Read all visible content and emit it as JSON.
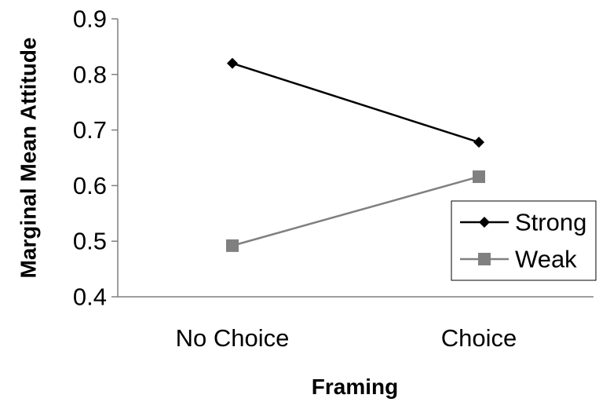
{
  "chart_data": {
    "type": "line",
    "xlabel": "Framing",
    "ylabel": "Marginal Mean Attitude",
    "categories": [
      "No Choice",
      "Choice"
    ],
    "ylim": [
      0.4,
      0.9
    ],
    "yticks": [
      "0.4",
      "0.5",
      "0.6",
      "0.7",
      "0.8",
      "0.9"
    ],
    "grid": false,
    "legend_position": "right",
    "series": [
      {
        "name": "Strong",
        "values": [
          0.82,
          0.678
        ],
        "color": "#000000",
        "marker": "diamond"
      },
      {
        "name": "Weak",
        "values": [
          0.492,
          0.616
        ],
        "color": "#808080",
        "marker": "square"
      }
    ]
  }
}
